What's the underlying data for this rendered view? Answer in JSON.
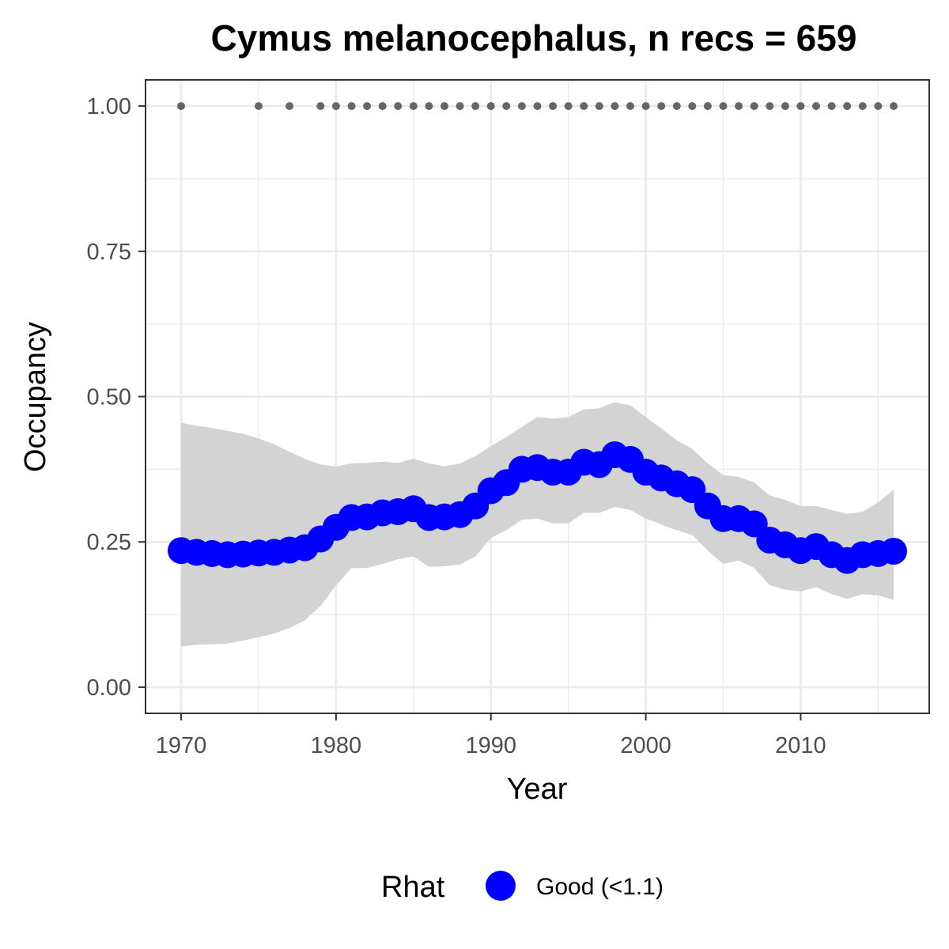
{
  "chart_data": {
    "type": "line",
    "title": "Cymus melanocephalus, n recs = 659",
    "xlabel": "Year",
    "ylabel": "Occupancy",
    "xlim": [
      1967.7,
      2018.3
    ],
    "ylim": [
      -0.045,
      1.045
    ],
    "x_ticks": [
      1970,
      1980,
      1990,
      2000,
      2010
    ],
    "x_tick_labels": [
      "1970",
      "1980",
      "1990",
      "2000",
      "2010"
    ],
    "y_ticks": [
      0,
      0.25,
      0.5,
      0.75,
      1.0
    ],
    "y_tick_labels": [
      "0.00",
      "0.25",
      "0.50",
      "0.75",
      "1.00"
    ],
    "grid": true,
    "years": [
      1970,
      1971,
      1972,
      1973,
      1974,
      1975,
      1976,
      1977,
      1978,
      1979,
      1980,
      1981,
      1982,
      1983,
      1984,
      1985,
      1986,
      1987,
      1988,
      1989,
      1990,
      1991,
      1992,
      1993,
      1994,
      1995,
      1996,
      1997,
      1998,
      1999,
      2000,
      2001,
      2002,
      2003,
      2004,
      2005,
      2006,
      2007,
      2008,
      2009,
      2010,
      2011,
      2012,
      2013,
      2014,
      2015,
      2016
    ],
    "series": [
      {
        "type": "line+points",
        "color": "#0000ff",
        "values": [
          0.235,
          0.232,
          0.23,
          0.228,
          0.229,
          0.231,
          0.232,
          0.236,
          0.24,
          0.255,
          0.275,
          0.292,
          0.293,
          0.3,
          0.302,
          0.307,
          0.292,
          0.293,
          0.297,
          0.312,
          0.338,
          0.352,
          0.375,
          0.378,
          0.37,
          0.37,
          0.387,
          0.383,
          0.4,
          0.392,
          0.37,
          0.36,
          0.35,
          0.34,
          0.312,
          0.29,
          0.29,
          0.281,
          0.253,
          0.245,
          0.235,
          0.242,
          0.228,
          0.218,
          0.228,
          0.23,
          0.234
        ]
      },
      {
        "type": "ribbon",
        "color": "#d3d3d3",
        "upper": [
          0.455,
          0.45,
          0.446,
          0.441,
          0.436,
          0.428,
          0.418,
          0.405,
          0.393,
          0.383,
          0.38,
          0.385,
          0.386,
          0.388,
          0.386,
          0.393,
          0.385,
          0.38,
          0.385,
          0.398,
          0.415,
          0.43,
          0.448,
          0.465,
          0.462,
          0.465,
          0.478,
          0.48,
          0.49,
          0.485,
          0.465,
          0.445,
          0.425,
          0.41,
          0.385,
          0.365,
          0.362,
          0.352,
          0.33,
          0.322,
          0.312,
          0.312,
          0.305,
          0.298,
          0.302,
          0.318,
          0.34
        ],
        "lower": [
          0.07,
          0.073,
          0.074,
          0.075,
          0.08,
          0.086,
          0.092,
          0.102,
          0.115,
          0.14,
          0.175,
          0.205,
          0.205,
          0.212,
          0.22,
          0.225,
          0.207,
          0.208,
          0.211,
          0.225,
          0.257,
          0.27,
          0.288,
          0.29,
          0.282,
          0.282,
          0.3,
          0.3,
          0.31,
          0.305,
          0.29,
          0.28,
          0.27,
          0.262,
          0.235,
          0.212,
          0.218,
          0.205,
          0.175,
          0.168,
          0.165,
          0.172,
          0.16,
          0.152,
          0.16,
          0.158,
          0.15
        ]
      },
      {
        "type": "points",
        "color": "#666666",
        "x": [
          1970,
          1975,
          1977,
          1979,
          1980,
          1981,
          1982,
          1983,
          1984,
          1985,
          1986,
          1987,
          1988,
          1989,
          1990,
          1991,
          1992,
          1993,
          1994,
          1995,
          1996,
          1997,
          1998,
          1999,
          2000,
          2001,
          2002,
          2003,
          2004,
          2005,
          2006,
          2007,
          2008,
          2009,
          2010,
          2011,
          2012,
          2013,
          2014,
          2015,
          2016
        ],
        "values": [
          1,
          1,
          1,
          1,
          1,
          1,
          1,
          1,
          1,
          1,
          1,
          1,
          1,
          1,
          1,
          1,
          1,
          1,
          1,
          1,
          1,
          1,
          1,
          1,
          1,
          1,
          1,
          1,
          1,
          1,
          1,
          1,
          1,
          1,
          1,
          1,
          1,
          1,
          1,
          1,
          1
        ]
      }
    ],
    "legend": {
      "title": "Rhat",
      "position": "bottom",
      "entries": [
        {
          "label": "Good (<1.1)",
          "color": "#0000ff"
        }
      ]
    }
  }
}
